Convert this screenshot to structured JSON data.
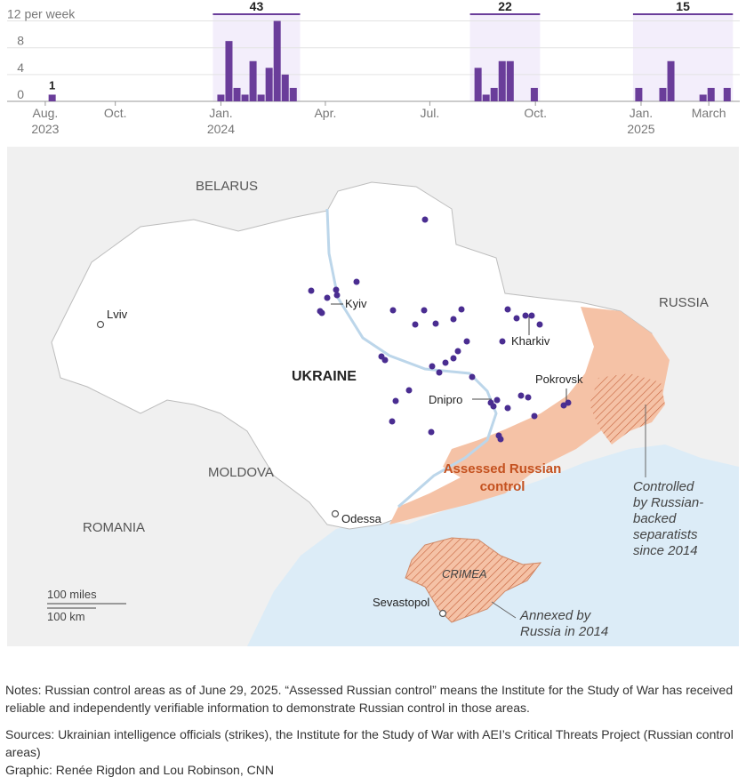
{
  "chart_data": {
    "type": "bar",
    "y_unit_label": "12 per week",
    "y_ticks": [
      0,
      4,
      8,
      12
    ],
    "ylim": [
      0,
      13
    ],
    "x_ticks": [
      {
        "date": "2023-08",
        "label": "Aug.",
        "year": "2023"
      },
      {
        "date": "2023-10",
        "label": "Oct.",
        "year": ""
      },
      {
        "date": "2024-01",
        "label": "Jan.",
        "year": "2024"
      },
      {
        "date": "2024-04",
        "label": "Apr.",
        "year": ""
      },
      {
        "date": "2024-07",
        "label": "Jul.",
        "year": ""
      },
      {
        "date": "2024-10",
        "label": "Oct.",
        "year": ""
      },
      {
        "date": "2025-01",
        "label": "Jan.",
        "year": "2025"
      },
      {
        "date": "2025-03",
        "label": "March",
        "year": ""
      }
    ],
    "series": [
      {
        "x": [
          "2023-08-07",
          "2024-01-01",
          "2024-01-08",
          "2024-01-15",
          "2024-01-22",
          "2024-01-29",
          "2024-02-05",
          "2024-02-12",
          "2024-02-19",
          "2024-02-26",
          "2024-03-04",
          "2024-08-12",
          "2024-08-19",
          "2024-08-26",
          "2024-09-02",
          "2024-09-09",
          "2024-09-30",
          "2024-12-30",
          "2025-01-20",
          "2025-01-27",
          "2025-02-24",
          "2025-03-03",
          "2025-03-17"
        ],
        "values": [
          1,
          1,
          9,
          2,
          1,
          6,
          1,
          5,
          12,
          4,
          2,
          5,
          1,
          2,
          6,
          6,
          2,
          2,
          2,
          6,
          1,
          2,
          2
        ]
      }
    ],
    "highlight_periods": [
      {
        "total": "43",
        "start": "2023-12-25",
        "end": "2024-03-10"
      },
      {
        "total": "22",
        "start": "2024-08-05",
        "end": "2024-10-05"
      },
      {
        "total": "15",
        "start": "2024-12-25",
        "end": "2025-03-22"
      }
    ],
    "first_bar_label": "1",
    "bar_color": "#6a3d9a",
    "highlight_color": "#f3eefb"
  },
  "map": {
    "country_labels": {
      "belarus": "BELARUS",
      "russia": "RUSSIA",
      "ukraine": "UKRAINE",
      "moldova": "MOLDOVA",
      "romania": "ROMANIA"
    },
    "cities": {
      "kyiv": "Kyiv",
      "lviv": "Lviv",
      "kharkiv": "Kharkiv",
      "pokrovsk": "Pokrovsk",
      "dnipro": "Dnipro",
      "odessa": "Odessa",
      "sevastopol": "Sevastopol"
    },
    "region_labels": {
      "assessed_line1": "Assessed Russian",
      "assessed_line2": "control",
      "crimea": "CRIMEA",
      "separatists": [
        "Controlled",
        "by Russian-",
        "backed",
        "separatists",
        "since 2014"
      ],
      "annexed": [
        "Annexed by",
        "Russia in 2014"
      ]
    },
    "scale": {
      "miles": "100 miles",
      "km": "100 km"
    },
    "colors": {
      "water": "#dcecf7",
      "land_other": "#f0f0f0",
      "ukraine": "#ffffff",
      "russian_control": "#f5c2a6",
      "assessed_label": "#c4511f",
      "strike": "#4a2d91"
    }
  },
  "notes": "Notes: Russian control areas as of June 29, 2025. “Assessed Russian control” means the Institute for the Study of War has received reliable and independently verifiable information to demonstrate Russian control in those areas.",
  "sources": "Sources: Ukrainian intelligence officials (strikes), the Institute for the Study of War with AEI’s Critical Threats Project (Russian control areas)",
  "credit": "Graphic: Renée Rigdon and Lou Robinson, CNN"
}
